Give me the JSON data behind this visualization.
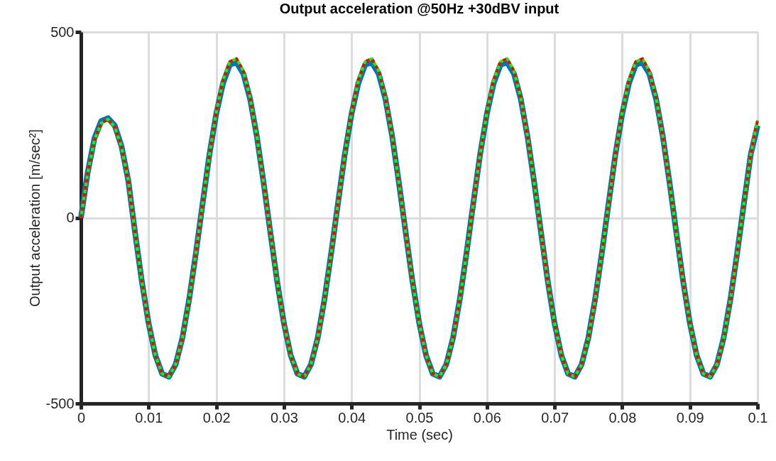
{
  "chart_data": {
    "type": "line",
    "title": "Output acceleration @50Hz +30dBV input",
    "xlabel": "Time (sec)",
    "ylabel": "Output acceleration [m/sec²]",
    "x": [
      0,
      0.001,
      0.002,
      0.003,
      0.004,
      0.005,
      0.006,
      0.007,
      0.008,
      0.009,
      0.01,
      0.011,
      0.012,
      0.013,
      0.014,
      0.015,
      0.016,
      0.017,
      0.018,
      0.019,
      0.02,
      0.021,
      0.022,
      0.023,
      0.024,
      0.025,
      0.026,
      0.027,
      0.028,
      0.029,
      0.03,
      0.031,
      0.032,
      0.033,
      0.034,
      0.035,
      0.036,
      0.037,
      0.038,
      0.039,
      0.04,
      0.041,
      0.042,
      0.043,
      0.044,
      0.045,
      0.046,
      0.047,
      0.048,
      0.049,
      0.05,
      0.051,
      0.052,
      0.053,
      0.054,
      0.055,
      0.056,
      0.057,
      0.058,
      0.059,
      0.06,
      0.061,
      0.062,
      0.063,
      0.064,
      0.065,
      0.066,
      0.067,
      0.068,
      0.069,
      0.07,
      0.071,
      0.072,
      0.073,
      0.074,
      0.075,
      0.076,
      0.077,
      0.078,
      0.079,
      0.08,
      0.081,
      0.082,
      0.083,
      0.084,
      0.085,
      0.086,
      0.087,
      0.088,
      0.089,
      0.09,
      0.091,
      0.092,
      0.093,
      0.094,
      0.095,
      0.096,
      0.097,
      0.098,
      0.099,
      0.1
    ],
    "series": [
      {
        "color": "#0072bd",
        "line_style": "solid",
        "values": [
          0,
          122,
          214,
          260,
          268,
          248,
          192,
          100,
          -40,
          -171,
          -284,
          -370,
          -420,
          -428,
          -395,
          -323,
          -219,
          -94,
          40,
          171,
          280,
          362,
          412,
          418,
          388,
          320,
          219,
          94,
          -40,
          -171,
          -284,
          -370,
          -420,
          -428,
          -395,
          -323,
          -219,
          -94,
          40,
          171,
          280,
          362,
          412,
          418,
          388,
          320,
          219,
          94,
          -40,
          -171,
          -284,
          -370,
          -420,
          -428,
          -395,
          -323,
          -219,
          -94,
          40,
          171,
          280,
          362,
          412,
          418,
          388,
          320,
          219,
          94,
          -40,
          -171,
          -284,
          -370,
          -420,
          -428,
          -395,
          -323,
          -219,
          -94,
          40,
          171,
          280,
          362,
          412,
          418,
          388,
          320,
          219,
          94,
          -40,
          -171,
          -284,
          -370,
          -420,
          -428,
          -395,
          -323,
          -219,
          -94,
          40,
          171,
          248
        ]
      },
      {
        "color": "#00ff00",
        "line_style": "solid",
        "values": [
          0,
          120,
          210,
          255,
          265,
          245,
          190,
          100,
          -40,
          -171,
          -284,
          -370,
          -420,
          -428,
          -395,
          -323,
          -219,
          -94,
          40,
          171,
          284,
          370,
          420,
          428,
          395,
          323,
          219,
          94,
          -40,
          -171,
          -284,
          -370,
          -420,
          -428,
          -395,
          -323,
          -219,
          -94,
          40,
          171,
          284,
          370,
          420,
          428,
          395,
          323,
          219,
          94,
          -40,
          -171,
          -284,
          -370,
          -420,
          -428,
          -395,
          -323,
          -219,
          -94,
          40,
          171,
          284,
          370,
          420,
          428,
          395,
          323,
          219,
          94,
          -40,
          -171,
          -284,
          -370,
          -420,
          -428,
          -395,
          -323,
          -219,
          -94,
          40,
          171,
          284,
          370,
          420,
          428,
          395,
          323,
          219,
          94,
          -40,
          -171,
          -284,
          -370,
          -420,
          -428,
          -395,
          -323,
          -219,
          -94,
          40,
          171,
          262
        ]
      },
      {
        "color": "#ff0000",
        "line_style": "dotted",
        "values": [
          0,
          120,
          210,
          255,
          265,
          245,
          190,
          100,
          -40,
          -171,
          -284,
          -370,
          -420,
          -428,
          -395,
          -323,
          -219,
          -94,
          40,
          171,
          284,
          370,
          420,
          428,
          395,
          323,
          219,
          94,
          -40,
          -171,
          -284,
          -370,
          -420,
          -428,
          -395,
          -323,
          -219,
          -94,
          40,
          171,
          284,
          370,
          420,
          428,
          395,
          323,
          219,
          94,
          -40,
          -171,
          -284,
          -370,
          -420,
          -428,
          -395,
          -323,
          -219,
          -94,
          40,
          171,
          284,
          370,
          420,
          428,
          395,
          323,
          219,
          94,
          -40,
          -171,
          -284,
          -370,
          -420,
          -428,
          -395,
          -323,
          -219,
          -94,
          40,
          171,
          284,
          370,
          420,
          428,
          395,
          323,
          219,
          94,
          -40,
          -171,
          -284,
          -370,
          -420,
          -428,
          -395,
          -323,
          -219,
          -94,
          40,
          171,
          262
        ]
      }
    ],
    "xlim": [
      0,
      0.1
    ],
    "xticks": [
      0,
      0.01,
      0.02,
      0.03,
      0.04,
      0.05,
      0.06,
      0.07,
      0.08,
      0.09,
      0.1
    ],
    "ylim": [
      -500,
      500
    ],
    "yticks": [
      -500,
      0,
      500
    ],
    "grid": true,
    "marker": "none"
  }
}
